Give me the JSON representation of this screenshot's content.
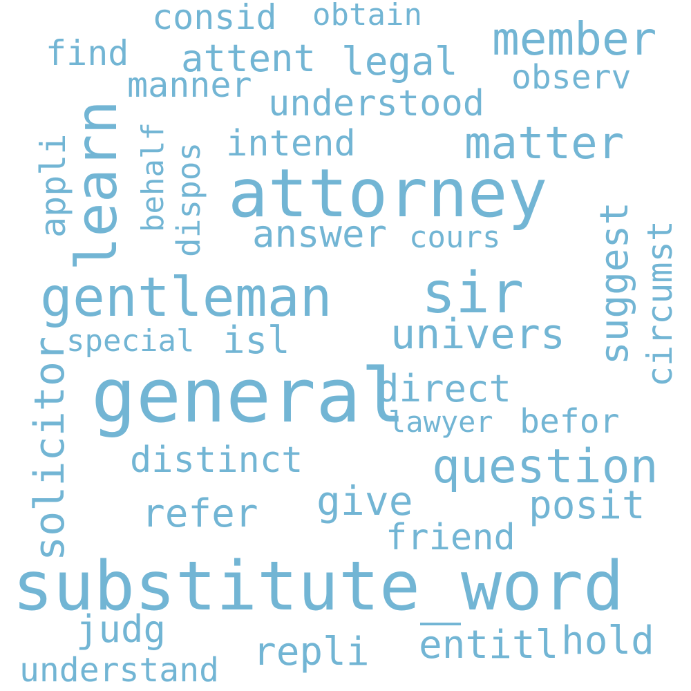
{
  "word_cloud": {
    "color": "#72b5d4",
    "background": "#ffffff",
    "words": {
      "substitute_word": "substitute_word",
      "general": "general",
      "attorney": "attorney",
      "learn": "learn",
      "gentleman": "gentleman",
      "sir": "sir",
      "solicitor": "solicitor",
      "question": "question",
      "member": "member",
      "matter": "matter",
      "univers": "univers",
      "answer": "answer",
      "distinct": "distinct",
      "posit": "posit",
      "suggest": "suggest",
      "direct": "direct",
      "refer": "refer",
      "friend": "friend",
      "give": "give",
      "circumst": "circumst",
      "legal": "legal",
      "attent": "attent",
      "consid": "consid",
      "understood": "understood",
      "intend": "intend",
      "find": "find",
      "manner": "manner",
      "observ": "observ",
      "obtain": "obtain",
      "appli": "appli",
      "behalf": "behalf",
      "dispos": "dispos",
      "cours": "cours",
      "special": "special",
      "isl": "isl",
      "lawyer": "lawyer",
      "befor": "befor",
      "judg": "judg",
      "repli": "repli",
      "entitl": "entitl",
      "hold": "hold",
      "understand": "understand"
    }
  }
}
